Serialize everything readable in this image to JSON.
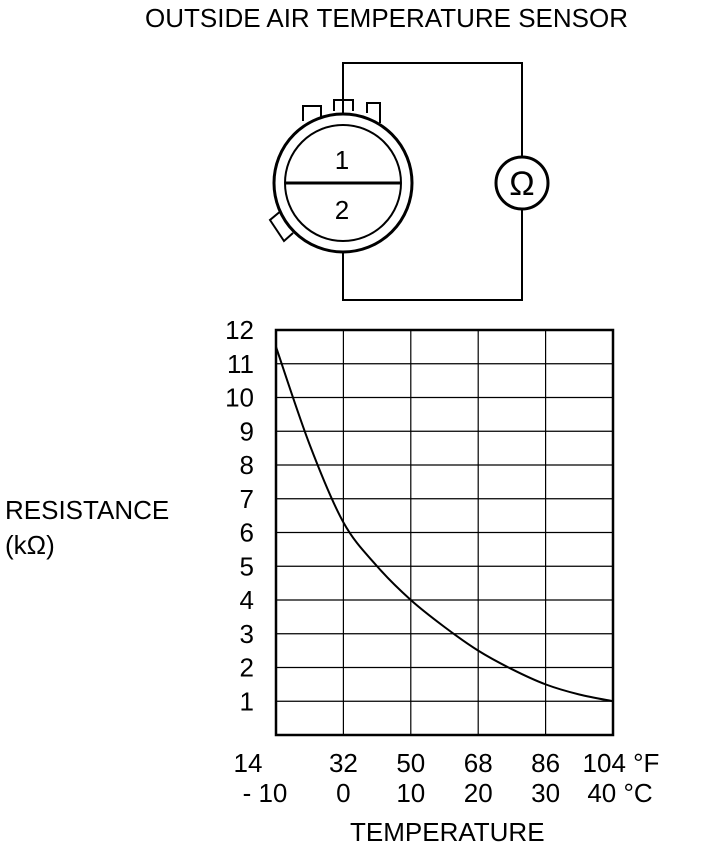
{
  "diagram": {
    "title": "OUTSIDE AIR TEMPERATURE SENSOR",
    "terminal_top_label": "1",
    "terminal_bottom_label": "2",
    "meter_symbol": "Ω",
    "meter_icon": "ohmmeter-icon",
    "connector_icon": "sensor-connector-icon"
  },
  "chart_data": {
    "type": "line",
    "ylabel_line1": "RESISTANCE",
    "ylabel_line2": "(kΩ)",
    "xlabel": "TEMPERATURE",
    "ylim": [
      0,
      12
    ],
    "xlim_c": [
      -10,
      40
    ],
    "y_ticks": [
      "1",
      "2",
      "3",
      "4",
      "5",
      "6",
      "7",
      "8",
      "9",
      "10",
      "11",
      "12"
    ],
    "x_ticks_f": [
      "14",
      "32",
      "50",
      "68",
      "86",
      "104 °F"
    ],
    "x_ticks_c": [
      "- 10",
      "0",
      "10",
      "20",
      "30",
      "40 °C"
    ],
    "grid": true,
    "series": [
      {
        "x_c": [
          -10,
          -5,
          0,
          5,
          10,
          15,
          20,
          25,
          30,
          35,
          40
        ],
        "y": [
          11.5,
          8.6,
          6.3,
          5.0,
          4.0,
          3.2,
          2.5,
          1.95,
          1.5,
          1.2,
          1.0
        ]
      }
    ]
  }
}
